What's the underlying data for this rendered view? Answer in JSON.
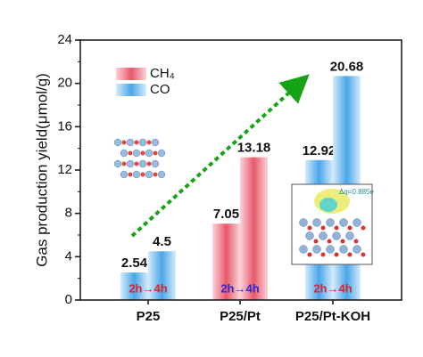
{
  "chart_data": {
    "type": "bar",
    "ylabel": "Gas production yield(μmol/g)",
    "categories": [
      "P25",
      "P25/Pt",
      "P25/Pt-KOH"
    ],
    "legend": [
      {
        "name": "CH₄",
        "color": "#e8586a"
      },
      {
        "name": "CO",
        "color": "#4aa6e8"
      }
    ],
    "values": [
      [
        2.54,
        4.5
      ],
      [
        7.05,
        13.18
      ],
      [
        12.92,
        20.68
      ]
    ],
    "bar_legend": [
      1,
      0,
      1
    ],
    "annotations": [
      {
        "text": "2h→4h",
        "color": "#e0202a"
      },
      {
        "text": "2h→4h",
        "color": "#2a2ad0"
      },
      {
        "text": "2h→4h",
        "color": "#e0202a"
      }
    ],
    "inset_text": "Δq=0.885e",
    "ylim": [
      0,
      24
    ],
    "yticks": [
      0,
      4,
      8,
      12,
      16,
      20,
      24
    ]
  }
}
